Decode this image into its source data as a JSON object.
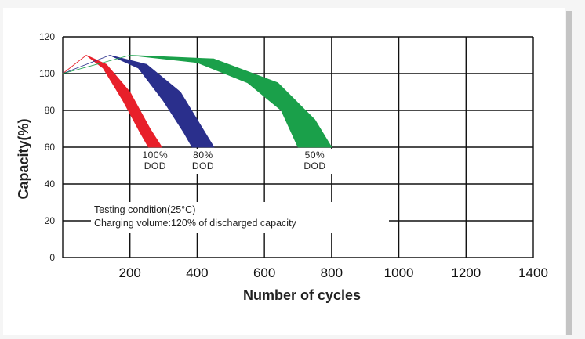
{
  "chart_data": {
    "type": "area",
    "xlabel": "Number of cycles",
    "ylabel": "Capacity(%)",
    "xlim": [
      0,
      1400
    ],
    "ylim": [
      0,
      120
    ],
    "xticks": [
      "200",
      "400",
      "600",
      "800",
      "1000",
      "1200",
      "1400"
    ],
    "yticks": [
      "0",
      "20",
      "40",
      "60",
      "80",
      "100",
      "120"
    ],
    "grid": true,
    "series": [
      {
        "color": "#e8202a",
        "label_lines": [
          "100%",
          "DOD"
        ],
        "upper": [
          [
            0,
            100
          ],
          [
            70,
            110
          ],
          [
            130,
            105
          ],
          [
            200,
            90
          ],
          [
            260,
            70
          ],
          [
            295,
            60
          ]
        ],
        "lower": [
          [
            0,
            100
          ],
          [
            70,
            110
          ],
          [
            120,
            103
          ],
          [
            180,
            85
          ],
          [
            230,
            68
          ],
          [
            255,
            60
          ]
        ]
      },
      {
        "color": "#2a2f8c",
        "label_lines": [
          "80%",
          "DOD"
        ],
        "upper": [
          [
            0,
            100
          ],
          [
            140,
            110
          ],
          [
            250,
            105
          ],
          [
            350,
            90
          ],
          [
            410,
            72
          ],
          [
            450,
            60
          ]
        ],
        "lower": [
          [
            0,
            100
          ],
          [
            140,
            110
          ],
          [
            225,
            103
          ],
          [
            300,
            85
          ],
          [
            360,
            68
          ],
          [
            385,
            60
          ]
        ]
      },
      {
        "color": "#1aa04a",
        "label_lines": [
          "50%",
          "DOD"
        ],
        "upper": [
          [
            0,
            100
          ],
          [
            200,
            110
          ],
          [
            450,
            108
          ],
          [
            640,
            95
          ],
          [
            750,
            75
          ],
          [
            800,
            60
          ]
        ],
        "lower": [
          [
            0,
            100
          ],
          [
            200,
            110
          ],
          [
            400,
            106
          ],
          [
            550,
            95
          ],
          [
            650,
            80
          ],
          [
            700,
            60
          ]
        ]
      }
    ],
    "annotations": [
      "Testing condition(25°C)",
      "Charging volume:120% of discharged capacity"
    ]
  }
}
